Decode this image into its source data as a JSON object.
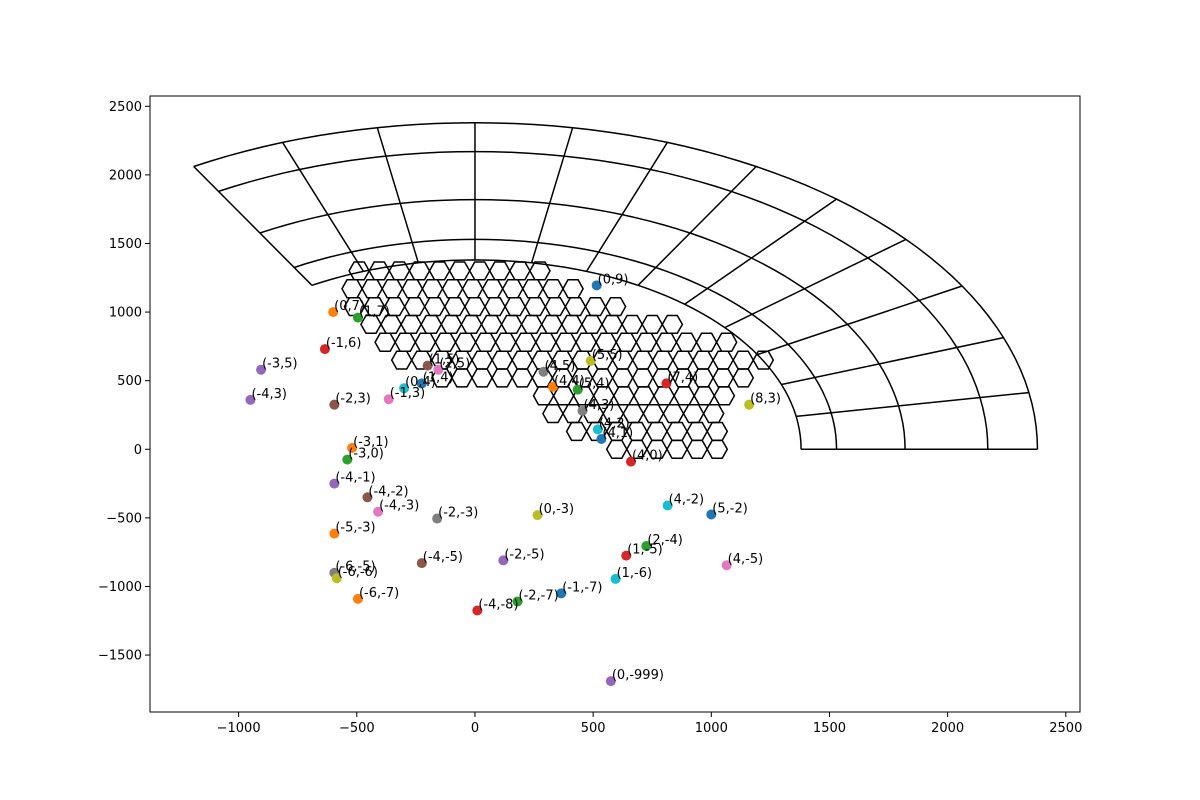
{
  "chart_data": {
    "type": "scatter",
    "xlim": [
      -1375,
      2560
    ],
    "ylim": [
      -1915,
      2575
    ],
    "x_ticks": [
      -1000,
      -500,
      0,
      500,
      1000,
      1500,
      2000,
      2500
    ],
    "y_ticks": [
      -1500,
      -1000,
      -500,
      0,
      500,
      1000,
      1500,
      2000,
      2500
    ],
    "x_tick_labels": [
      "−1000",
      "−500",
      "0",
      "500",
      "1000",
      "1500",
      "2000",
      "2500"
    ],
    "y_tick_labels": [
      "−1500",
      "−1000",
      "−500",
      "0",
      "500",
      "1000",
      "1500",
      "2000",
      "2500"
    ],
    "grid": false,
    "palette": [
      "#1f77b4",
      "#ff7f0e",
      "#2ca02c",
      "#d62728",
      "#9467bd",
      "#8c564b",
      "#e377c2",
      "#7f7f7f",
      "#bcbd22",
      "#17becf"
    ],
    "curved_grid": {
      "description_free": true,
      "center": [
        0,
        0
      ],
      "radii": [
        1380,
        1530,
        1820,
        2170,
        2380
      ],
      "angle_range_deg": [
        0,
        120
      ],
      "angle_step_deg": 10
    },
    "hex_grid": {
      "rows": [
        {
          "y": 0,
          "x_start": 600,
          "count": 6
        },
        {
          "y": 130,
          "x_start": 430,
          "count": 8
        },
        {
          "y": 260,
          "x_start": 330,
          "count": 9
        },
        {
          "y": 390,
          "x_start": 290,
          "count": 10
        },
        {
          "y": 520,
          "x_start": -140,
          "count": 16
        },
        {
          "y": 650,
          "x_start": -310,
          "count": 19
        },
        {
          "y": 780,
          "x_start": -380,
          "count": 18
        },
        {
          "y": 910,
          "x_start": -440,
          "count": 16
        },
        {
          "y": 1040,
          "x_start": -510,
          "count": 14
        },
        {
          "y": 1170,
          "x_start": -520,
          "count": 12
        },
        {
          "y": 1300,
          "x_start": -490,
          "count": 10
        }
      ],
      "hex_size": 85
    },
    "points": [
      {
        "label": "(0,9)",
        "x": 515,
        "y": 1195
      },
      {
        "label": "(0,7)",
        "x": -600,
        "y": 1000
      },
      {
        "label": "(1,7)",
        "x": -495,
        "y": 960
      },
      {
        "label": "(-1,6)",
        "x": -635,
        "y": 730
      },
      {
        "label": "(-3,5)",
        "x": -905,
        "y": 580
      },
      {
        "label": "(1,5)",
        "x": -200,
        "y": 610
      },
      {
        "label": "(2,5)",
        "x": -155,
        "y": 580
      },
      {
        "label": "(4,5)",
        "x": 290,
        "y": 565
      },
      {
        "label": "(5,5)",
        "x": 490,
        "y": 645
      },
      {
        "label": "(0,4)",
        "x": -300,
        "y": 445
      },
      {
        "label": "(1,4)",
        "x": -225,
        "y": 480
      },
      {
        "label": "(4,4)",
        "x": 330,
        "y": 455
      },
      {
        "label": "(5,4)",
        "x": 435,
        "y": 435
      },
      {
        "label": "(7,4)",
        "x": 810,
        "y": 480
      },
      {
        "label": "(-4,3)",
        "x": -950,
        "y": 360
      },
      {
        "label": "(-2,3)",
        "x": -595,
        "y": 325
      },
      {
        "label": "(-1,3)",
        "x": -365,
        "y": 365
      },
      {
        "label": "(4,3)",
        "x": 455,
        "y": 280
      },
      {
        "label": "(8,3)",
        "x": 1160,
        "y": 325
      },
      {
        "label": "(4,2)",
        "x": 520,
        "y": 145
      },
      {
        "label": "(4,1)",
        "x": 535,
        "y": 75
      },
      {
        "label": "(-3,1)",
        "x": -520,
        "y": 10
      },
      {
        "label": "(-3,0)",
        "x": -540,
        "y": -75
      },
      {
        "label": "(4,0)",
        "x": 660,
        "y": -90
      },
      {
        "label": "(-4,-1)",
        "x": -595,
        "y": -250
      },
      {
        "label": "(-4,-2)",
        "x": -455,
        "y": -350
      },
      {
        "label": "(-4,-3)",
        "x": -410,
        "y": -455
      },
      {
        "label": "(-2,-3)",
        "x": -160,
        "y": -505
      },
      {
        "label": "(0,-3)",
        "x": 265,
        "y": -480
      },
      {
        "label": "(4,-2)",
        "x": 815,
        "y": -410
      },
      {
        "label": "(5,-2)",
        "x": 1000,
        "y": -475
      },
      {
        "label": "(-5,-3)",
        "x": -595,
        "y": -615
      },
      {
        "label": "(2,-4)",
        "x": 725,
        "y": -705
      },
      {
        "label": "(1,-5)",
        "x": 640,
        "y": -775
      },
      {
        "label": "(-2,-5)",
        "x": 120,
        "y": -810
      },
      {
        "label": "(-4,-5)",
        "x": -225,
        "y": -830
      },
      {
        "label": "(4,-5)",
        "x": 1065,
        "y": -845
      },
      {
        "label": "(-6,-5)",
        "x": -595,
        "y": -900
      },
      {
        "label": "(-6,-6)",
        "x": -585,
        "y": -940
      },
      {
        "label": "(1,-6)",
        "x": 595,
        "y": -945
      },
      {
        "label": "(-1,-7)",
        "x": 365,
        "y": -1050
      },
      {
        "label": "(-6,-7)",
        "x": -495,
        "y": -1090
      },
      {
        "label": "(-2,-7)",
        "x": 180,
        "y": -1110
      },
      {
        "label": "(-4,-8)",
        "x": 10,
        "y": -1175
      },
      {
        "label": "(0,-999)",
        "x": 575,
        "y": -1690
      }
    ]
  }
}
